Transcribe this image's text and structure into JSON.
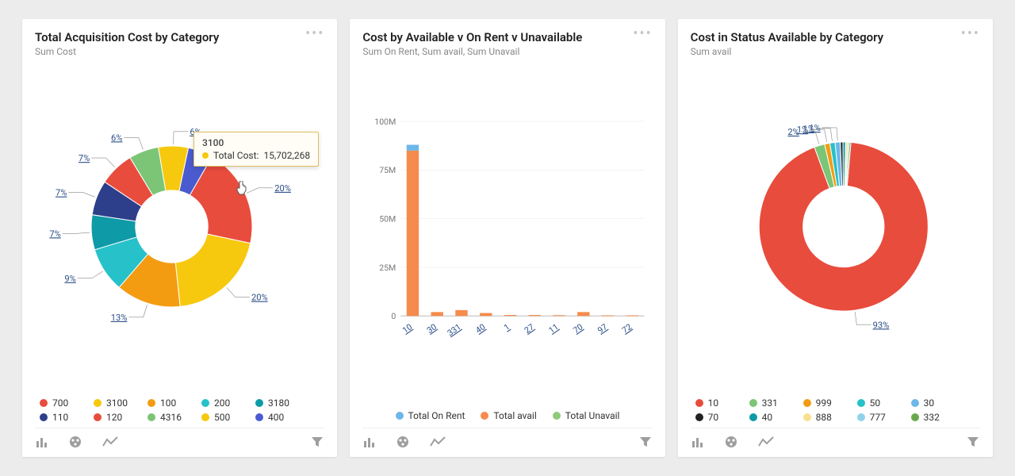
{
  "page": {
    "background_color": "#ececec",
    "card_background": "#ffffff"
  },
  "cards": [
    {
      "id": "acquisition",
      "title": "Total Acquisition Cost by Category",
      "subtitle": "Sum Cost",
      "chart": {
        "type": "donut",
        "inner_radius_ratio": 0.45,
        "slices": [
          {
            "label": "700",
            "percent": 20,
            "color": "#e84c3d",
            "callout": "20%"
          },
          {
            "label": "3100",
            "percent": 20,
            "color": "#f6c90e",
            "callout": "20%"
          },
          {
            "label": "100",
            "percent": 13,
            "color": "#f39c12",
            "callout": "13%"
          },
          {
            "label": "200",
            "percent": 9,
            "color": "#27c1c9",
            "callout": "9%"
          },
          {
            "label": "3180",
            "percent": 7,
            "color": "#0e9aa7",
            "callout": "7%"
          },
          {
            "label": "110",
            "percent": 7,
            "color": "#2d3e8b",
            "callout": "7%"
          },
          {
            "label": "120",
            "percent": 7,
            "color": "#e84c3d",
            "callout": "7%"
          },
          {
            "label": "4316",
            "percent": 6,
            "color": "#7cc576",
            "callout": "6%"
          },
          {
            "label": "500",
            "percent": 6,
            "color": "#f6c90e",
            "callout": "6%"
          },
          {
            "label": "400",
            "percent": 5,
            "color": "#4a5bcf",
            "callout": "5%"
          }
        ],
        "start_angle_deg": -60,
        "tooltip": {
          "category": "3100",
          "series_label": "Total Cost:",
          "value": "15,702,268",
          "dot_color": "#f6c90e",
          "bg_color": "#fffdf5",
          "border_color": "#e0c060"
        },
        "legend": [
          {
            "label": "700",
            "color": "#e84c3d"
          },
          {
            "label": "3100",
            "color": "#f6c90e"
          },
          {
            "label": "100",
            "color": "#f39c12"
          },
          {
            "label": "200",
            "color": "#27c1c9"
          },
          {
            "label": "3180",
            "color": "#0e9aa7"
          },
          {
            "label": "110",
            "color": "#2d3e8b"
          },
          {
            "label": "120",
            "color": "#e84c3d"
          },
          {
            "label": "4316",
            "color": "#7cc576"
          },
          {
            "label": "500",
            "color": "#f6c90e"
          },
          {
            "label": "400",
            "color": "#4a5bcf"
          }
        ]
      }
    },
    {
      "id": "rentstatus",
      "title": "Cost by Available v On Rent v Unavailable",
      "subtitle": "Sum On Rent, Sum avail, Sum Unavail",
      "chart": {
        "type": "stacked-bar",
        "y_axis": {
          "min": 0,
          "max": 100000000,
          "tick_step": 25000000,
          "tick_labels": [
            "0",
            "25M",
            "50M",
            "75M",
            "100M"
          ],
          "label_fontsize": 11,
          "label_color": "#777777"
        },
        "x_categories": [
          "10",
          "30",
          "331",
          "40",
          "1",
          "27",
          "11",
          "70",
          "97",
          "72"
        ],
        "series_colors": {
          "Total On Rent": "#6db7e8",
          "Total avail": "#f58b4c",
          "Total Unavail": "#8fc97a"
        },
        "bars": [
          {
            "x": "10",
            "stacks": [
              {
                "series": "Total avail",
                "value": 85000000
              },
              {
                "series": "Total On Rent",
                "value": 3000000
              }
            ]
          },
          {
            "x": "30",
            "stacks": [
              {
                "series": "Total avail",
                "value": 2000000
              }
            ]
          },
          {
            "x": "331",
            "stacks": [
              {
                "series": "Total avail",
                "value": 3000000
              }
            ]
          },
          {
            "x": "40",
            "stacks": [
              {
                "series": "Total avail",
                "value": 1500000
              }
            ]
          },
          {
            "x": "1",
            "stacks": [
              {
                "series": "Total avail",
                "value": 500000
              }
            ]
          },
          {
            "x": "27",
            "stacks": [
              {
                "series": "Total avail",
                "value": 500000
              }
            ]
          },
          {
            "x": "11",
            "stacks": [
              {
                "series": "Total avail",
                "value": 400000
              }
            ]
          },
          {
            "x": "70",
            "stacks": [
              {
                "series": "Total avail",
                "value": 2000000
              }
            ]
          },
          {
            "x": "97",
            "stacks": [
              {
                "series": "Total avail",
                "value": 300000
              }
            ]
          },
          {
            "x": "72",
            "stacks": [
              {
                "series": "Total avail",
                "value": 300000
              }
            ]
          }
        ],
        "grid_color": "#eeeeee",
        "legend": [
          {
            "label": "Total On Rent",
            "color": "#6db7e8"
          },
          {
            "label": "Total avail",
            "color": "#f58b4c"
          },
          {
            "label": "Total Unavail",
            "color": "#8fc97a"
          }
        ]
      }
    },
    {
      "id": "availstatus",
      "title": "Cost in Status Available by Category",
      "subtitle": "Sum avail",
      "chart": {
        "type": "donut",
        "inner_radius_ratio": 0.48,
        "slices": [
          {
            "label": "10",
            "percent": 93,
            "color": "#e84c3d",
            "callout": "93%"
          },
          {
            "label": "331",
            "percent": 2,
            "color": "#7cc576",
            "callout": "2%"
          },
          {
            "label": "999",
            "percent": 1,
            "color": "#f39c12",
            "callout": "1%"
          },
          {
            "label": "50",
            "percent": 1,
            "color": "#27c1c9",
            "callout": "1%"
          },
          {
            "label": "30",
            "percent": 1,
            "color": "#6db7e8",
            "callout": "1%"
          },
          {
            "label": "70",
            "percent": 0.5,
            "color": "#222222",
            "callout": ""
          },
          {
            "label": "40",
            "percent": 0.5,
            "color": "#0e9aa7",
            "callout": ""
          },
          {
            "label": "888",
            "percent": 0.4,
            "color": "#f8e08e",
            "callout": ""
          },
          {
            "label": "777",
            "percent": 0.3,
            "color": "#8fd3e8",
            "callout": ""
          },
          {
            "label": "332",
            "percent": 0.3,
            "color": "#6aa84f",
            "callout": ""
          }
        ],
        "start_angle_deg": -85,
        "legend": [
          {
            "label": "10",
            "color": "#e84c3d"
          },
          {
            "label": "331",
            "color": "#7cc576"
          },
          {
            "label": "999",
            "color": "#f39c12"
          },
          {
            "label": "50",
            "color": "#27c1c9"
          },
          {
            "label": "30",
            "color": "#6db7e8"
          },
          {
            "label": "70",
            "color": "#222222"
          },
          {
            "label": "40",
            "color": "#0e9aa7"
          },
          {
            "label": "888",
            "color": "#f8e08e"
          },
          {
            "label": "777",
            "color": "#8fd3e8"
          },
          {
            "label": "332",
            "color": "#6aa84f"
          }
        ]
      }
    }
  ],
  "footer_icons": {
    "bar": "bar-chart-icon",
    "pie": "pie-chart-icon",
    "line": "line-chart-icon",
    "filter": "filter-icon"
  }
}
